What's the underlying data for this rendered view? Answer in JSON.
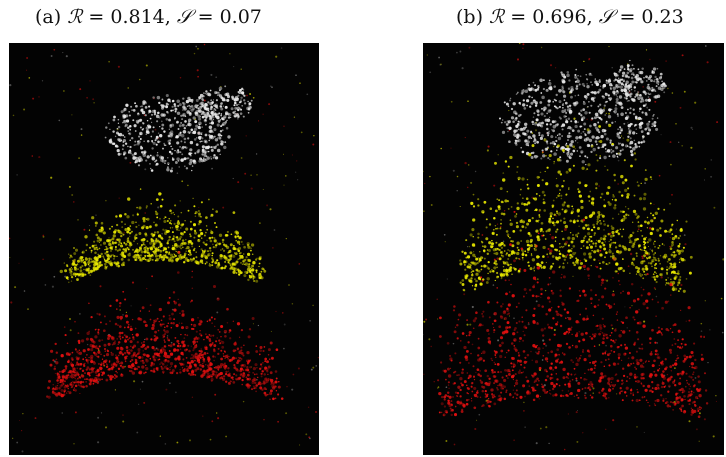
{
  "figure": {
    "panels": [
      {
        "id": "a",
        "caption_prefix": "(a) ",
        "r_symbol": "ℛ",
        "r_value": " = 0.814, ",
        "s_symbol": "𝒮",
        "s_value": " = 0.07",
        "bands": [
          "white",
          "yellow",
          "red"
        ]
      },
      {
        "id": "b",
        "caption_prefix": "(b) ",
        "r_symbol": "ℛ",
        "r_value": " = 0.696, ",
        "s_symbol": "𝒮",
        "s_value": " = 0.23",
        "bands": [
          "white",
          "yellow",
          "red"
        ]
      }
    ],
    "colors": {
      "background": "#030303",
      "white_band": "#e8e8e8",
      "yellow_band": "#e6e600",
      "red_band": "#e01010"
    }
  }
}
